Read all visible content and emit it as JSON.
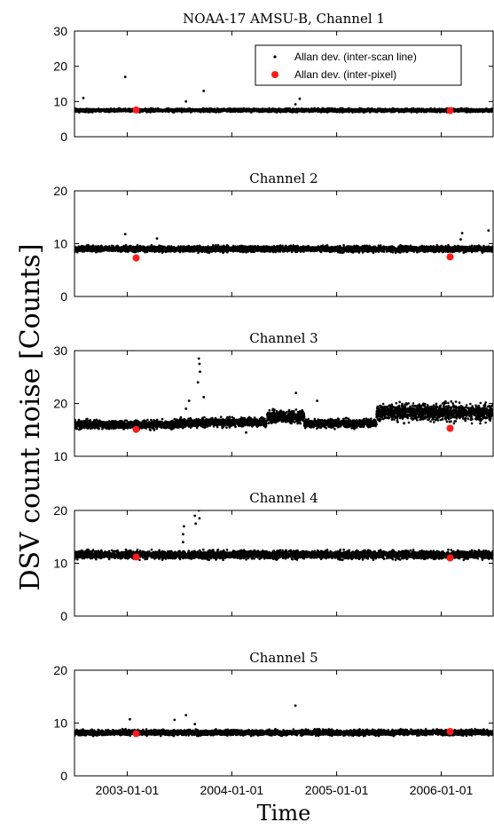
{
  "figure": {
    "ylabel": "DSV count noise [Counts]",
    "xlabel": "Time"
  },
  "legend": {
    "inter_scan": "Allan dev. (inter-scan line)",
    "inter_pixel": "Allan dev. (inter-pixel)"
  },
  "colors": {
    "scan": "#000000",
    "pixel": "#ff1a1a"
  },
  "x_ticks": [
    "2003-01-01",
    "2004-01-01",
    "2005-01-01",
    "2006-01-01"
  ],
  "chart_data": [
    {
      "type": "scatter",
      "title": "NOAA-17 AMSU-B, Channel 1",
      "xlim": [
        "2002-07-01",
        "2006-07-01"
      ],
      "ylim": [
        0,
        30
      ],
      "yticks": [
        0,
        10,
        20,
        30
      ],
      "legend": "top-right",
      "series": [
        {
          "name": "Allan dev. (inter-scan line)",
          "baseline": 7.5,
          "spread": 0.45,
          "outliers": [
            [
              "2002-08-01",
              11
            ],
            [
              "2002-12-25",
              17
            ],
            [
              "2003-07-25",
              10
            ],
            [
              "2003-09-25",
              13
            ],
            [
              "2004-08-10",
              9.2
            ],
            [
              "2004-08-25",
              10.8
            ]
          ]
        },
        {
          "name": "Allan dev. (inter-pixel)",
          "points": [
            [
              "2003-02-01",
              7.6
            ],
            [
              "2006-02-01",
              7.4
            ]
          ]
        }
      ]
    },
    {
      "type": "scatter",
      "title": "Channel 2",
      "xlim": [
        "2002-07-01",
        "2006-07-01"
      ],
      "ylim": [
        0,
        20
      ],
      "yticks": [
        0,
        10,
        20
      ],
      "series": [
        {
          "name": "Allan dev. (inter-scan line)",
          "baseline": 9.0,
          "spread": 0.55,
          "outliers": [
            [
              "2002-12-25",
              11.8
            ],
            [
              "2003-04-15",
              11.0
            ],
            [
              "2006-03-10",
              10.8
            ],
            [
              "2006-03-15",
              12.0
            ],
            [
              "2006-06-15",
              12.5
            ]
          ]
        },
        {
          "name": "Allan dev. (inter-pixel)",
          "points": [
            [
              "2003-02-01",
              7.3
            ],
            [
              "2006-02-01",
              7.5
            ]
          ]
        }
      ]
    },
    {
      "type": "scatter",
      "title": "Channel 3",
      "xlim": [
        "2002-07-01",
        "2006-07-01"
      ],
      "ylim": [
        10,
        30
      ],
      "yticks": [
        10,
        20,
        30
      ],
      "series": [
        {
          "name": "Allan dev. (inter-scan line)",
          "segments": [
            {
              "from": "2002-07-01",
              "to": "2003-07-01",
              "baseline": 16.0,
              "spread": 0.8
            },
            {
              "from": "2003-07-01",
              "to": "2004-05-01",
              "baseline": 16.4,
              "spread": 0.8
            },
            {
              "from": "2004-05-01",
              "to": "2004-09-10",
              "baseline": 17.5,
              "spread": 1.2
            },
            {
              "from": "2004-09-10",
              "to": "2005-05-20",
              "baseline": 16.2,
              "spread": 0.8
            },
            {
              "from": "2005-05-20",
              "to": "2006-07-01",
              "baseline": 18.3,
              "spread": 1.6
            }
          ],
          "outliers": [
            [
              "2003-07-25",
              19.0
            ],
            [
              "2003-08-05",
              20.5
            ],
            [
              "2003-09-05",
              24.0
            ],
            [
              "2003-09-08",
              28.5
            ],
            [
              "2003-09-10",
              27.5
            ],
            [
              "2003-09-12",
              26.0
            ],
            [
              "2003-09-25",
              21.2
            ],
            [
              "2004-08-12",
              22.0
            ],
            [
              "2004-10-25",
              20.5
            ],
            [
              "2004-02-20",
              14.5
            ]
          ]
        },
        {
          "name": "Allan dev. (inter-pixel)",
          "points": [
            [
              "2003-02-01",
              15.1
            ],
            [
              "2006-02-01",
              15.3
            ]
          ]
        }
      ]
    },
    {
      "type": "scatter",
      "title": "Channel 4",
      "xlim": [
        "2002-07-01",
        "2006-07-01"
      ],
      "ylim": [
        0,
        20
      ],
      "yticks": [
        0,
        10,
        20
      ],
      "series": [
        {
          "name": "Allan dev. (inter-scan line)",
          "baseline": 11.6,
          "spread": 0.75,
          "outliers": [
            [
              "2003-07-15",
              14.0
            ],
            [
              "2003-07-15",
              15.5
            ],
            [
              "2003-07-18",
              17.0
            ],
            [
              "2003-08-25",
              19.0
            ],
            [
              "2003-08-28",
              17.5
            ],
            [
              "2003-09-08",
              20.0
            ],
            [
              "2003-09-10",
              18.5
            ]
          ]
        },
        {
          "name": "Allan dev. (inter-pixel)",
          "points": [
            [
              "2003-02-01",
              11.2
            ],
            [
              "2006-02-01",
              11.0
            ]
          ]
        }
      ]
    },
    {
      "type": "scatter",
      "title": "Channel 5",
      "xlim": [
        "2002-07-01",
        "2006-07-01"
      ],
      "ylim": [
        0,
        20
      ],
      "yticks": [
        0,
        10,
        20
      ],
      "series": [
        {
          "name": "Allan dev. (inter-scan line)",
          "baseline": 8.2,
          "spread": 0.5,
          "outliers": [
            [
              "2003-01-10",
              10.7
            ],
            [
              "2003-06-15",
              10.6
            ],
            [
              "2003-07-25",
              11.5
            ],
            [
              "2003-08-25",
              9.8
            ],
            [
              "2004-08-10",
              13.3
            ]
          ]
        },
        {
          "name": "Allan dev. (inter-pixel)",
          "points": [
            [
              "2003-02-01",
              8.0
            ],
            [
              "2006-02-01",
              8.4
            ]
          ]
        }
      ]
    }
  ]
}
